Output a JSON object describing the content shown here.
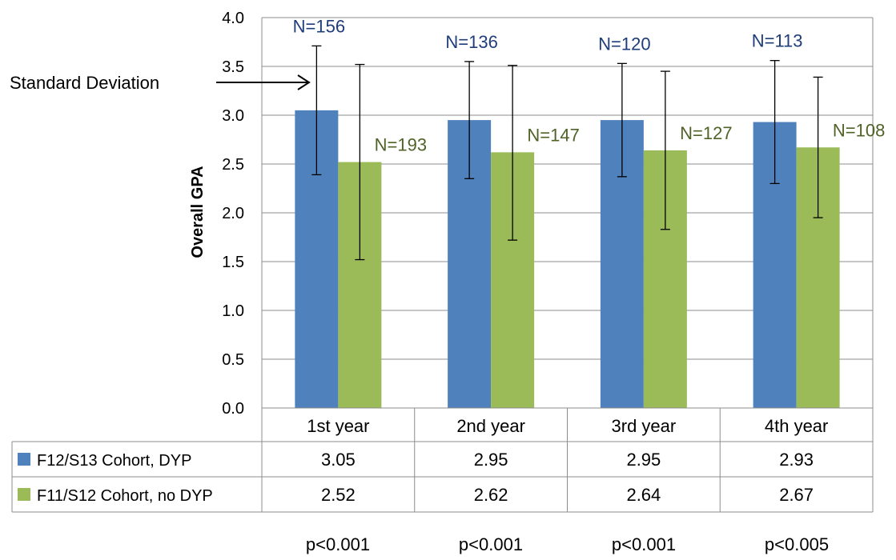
{
  "chart_data": {
    "type": "bar",
    "categories": [
      "1st year",
      "2nd year",
      "3rd year",
      "4th year"
    ],
    "ylabel": "Overall GPA",
    "ylim": [
      0,
      4.0
    ],
    "yticks": [
      "0.0",
      "0.5",
      "1.0",
      "1.5",
      "2.0",
      "2.5",
      "3.0",
      "3.5",
      "4.0"
    ],
    "grid": true,
    "series": [
      {
        "name": "F12/S13 Cohort, DYP",
        "color": "#4f81bd",
        "label_color": "#1f3d7a",
        "values": [
          3.05,
          2.95,
          2.95,
          2.93
        ],
        "error_low": [
          2.39,
          2.35,
          2.37,
          2.3
        ],
        "error_high": [
          3.71,
          3.55,
          3.53,
          3.56
        ],
        "n_labels": [
          "N=156",
          "N=136",
          "N=120",
          "N=113"
        ],
        "value_labels": [
          "3.05",
          "2.95",
          "2.95",
          "2.93"
        ]
      },
      {
        "name": "F11/S12 Cohort, no DYP",
        "color": "#9bbb59",
        "label_color": "#4f6228",
        "values": [
          2.52,
          2.62,
          2.64,
          2.67
        ],
        "error_low": [
          1.52,
          1.72,
          1.83,
          1.95
        ],
        "error_high": [
          3.52,
          3.51,
          3.45,
          3.39
        ],
        "n_labels": [
          "N=193",
          "N=147",
          "N=127",
          "N=108"
        ],
        "value_labels": [
          "2.52",
          "2.62",
          "2.64",
          "2.67"
        ]
      }
    ],
    "annotation": "Standard Deviation",
    "p_values": [
      "p<0.001",
      "p<0.001",
      "p<0.001",
      "p<0.005"
    ]
  }
}
